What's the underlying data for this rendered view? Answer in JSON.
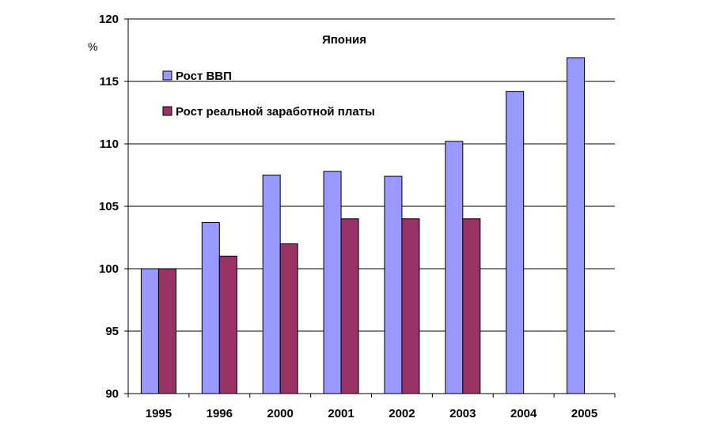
{
  "chart_data": {
    "type": "bar",
    "title": "Япония",
    "ylabel": "%",
    "xlabel": "",
    "categories": [
      "1995",
      "1996",
      "2000",
      "2001",
      "2002",
      "2003",
      "2004",
      "2005"
    ],
    "series": [
      {
        "name": "Рост ВВП",
        "color": "#9999ff",
        "values": [
          100,
          103.7,
          107.5,
          107.8,
          107.4,
          110.2,
          114.2,
          116.9
        ]
      },
      {
        "name": "Рост реальной заработной платы",
        "color": "#993366",
        "values": [
          100,
          101,
          102,
          104,
          104,
          104,
          null,
          null
        ]
      }
    ],
    "ylim": [
      90,
      120
    ],
    "yticks": [
      90,
      95,
      100,
      105,
      110,
      115,
      120
    ],
    "grid": true,
    "legend_position": "top-left"
  }
}
